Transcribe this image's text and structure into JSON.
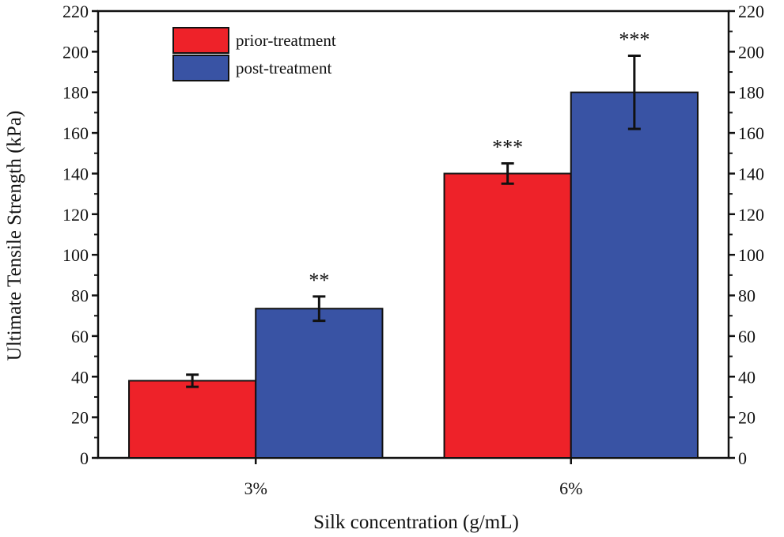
{
  "chart_data": {
    "type": "bar",
    "title": "",
    "xlabel": "Silk concentration (g/mL)",
    "ylabel": "Ultimate Tensile Strength (kPa)",
    "ylim": [
      0,
      220
    ],
    "yticks": [
      0,
      20,
      40,
      60,
      80,
      100,
      120,
      140,
      160,
      180,
      200,
      220
    ],
    "categories": [
      "3%",
      "6%"
    ],
    "series": [
      {
        "name": "prior-treatment",
        "color": "#ee2229",
        "values": [
          38,
          140
        ],
        "errors": [
          3,
          5
        ],
        "significance": [
          "",
          "***"
        ]
      },
      {
        "name": "post-treatment",
        "color": "#3953a4",
        "values": [
          73.5,
          180
        ],
        "errors": [
          6,
          18
        ],
        "significance": [
          "**",
          "***"
        ]
      }
    ],
    "legend": "top-left",
    "grid": false,
    "right_axis_mirrored": true
  }
}
